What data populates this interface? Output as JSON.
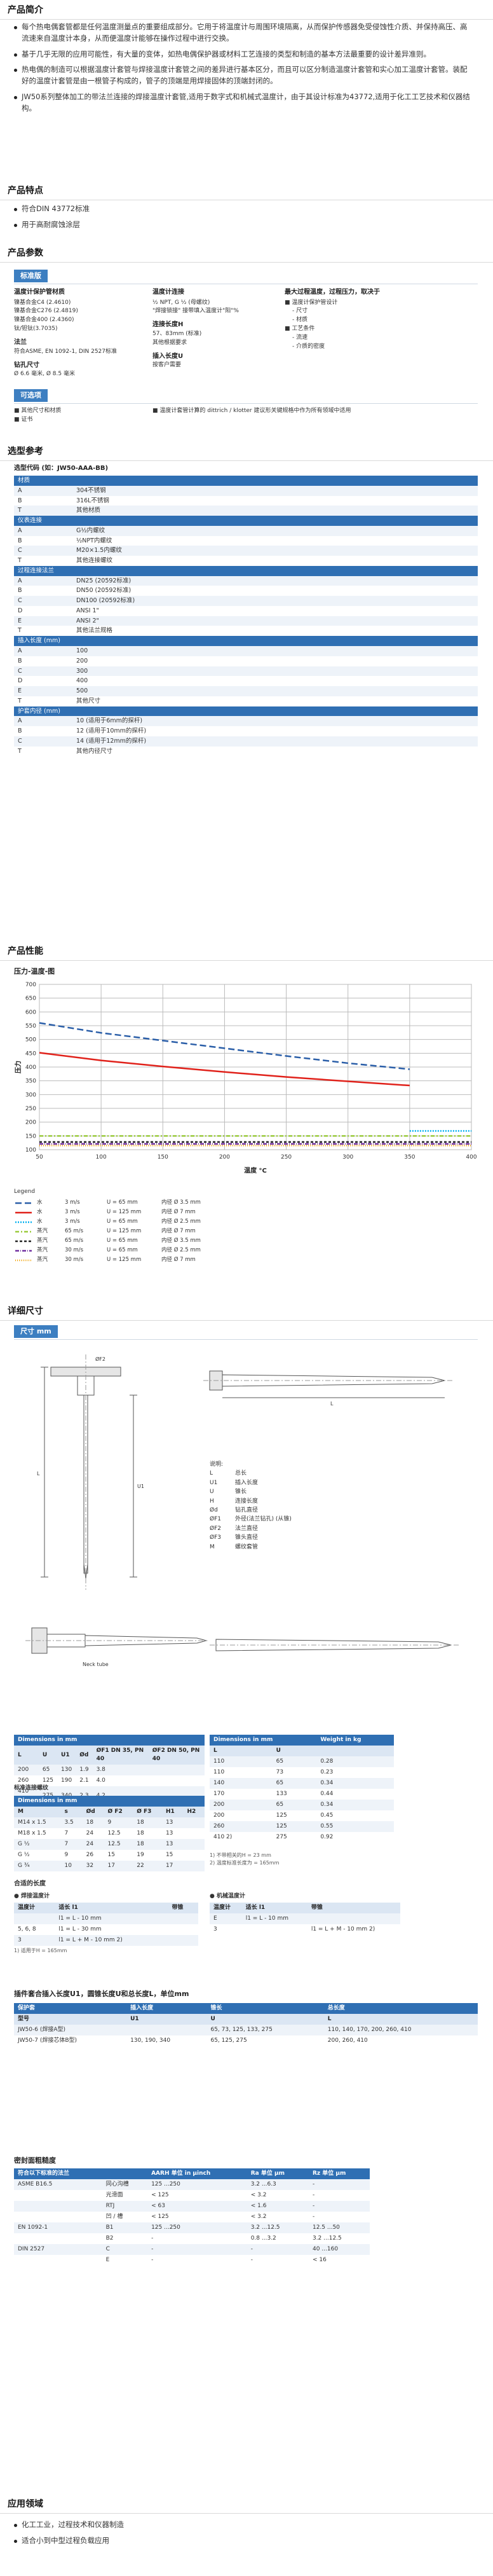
{
  "intro": {
    "title": "产品简介",
    "paras": [
      "每个热电偶套管都是任何温度测量点的重要组成部分。它用于将温度计与周围环境隔离，从而保护传感器免受侵蚀性介质、并保持高压、高流速来自温度计本身，从而便温度计能够在操作过程中进行交换。",
      "基于几乎无限的应用可能性，有大量的变体，如热电偶保护器或材料工艺连接的类型和制造的基本方法最重要的设计差异准则。",
      "热电偶的制造可以根据温度计套管与焊接温度计套管之间的差异进行基本区分，而且可以区分制造温度计套管和实心加工温度计套管。装配好的温度计套管是由一根管子构成的，管子的顶端是用焊接固体的顶端封闭的。",
      "JW50系列整体加工的带法兰连接的焊接温度计套管,适用于数字式和机械式温度计，由于其设计标准为43772,适用于化工工艺技术和仪器结构。"
    ]
  },
  "features": {
    "title": "产品特点",
    "items": [
      "符合DIN 43772标准",
      "用于高耐腐蚀涂层"
    ]
  },
  "params": {
    "title": "产品参数",
    "std_tag": "标准版",
    "col1": {
      "head": "温度计保护管材质",
      "lines": [
        "镍基合金C4 (2.4610)",
        "镍基合金C276 (2.4819)",
        "镍基合金400 (2.4360)",
        "钛/钽钛(3.7035)"
      ],
      "flange_label": "法兰",
      "flange_lines": [
        "符合ASME, EN 1092-1, DIN 2527标准"
      ],
      "bore_label": "钻孔尺寸",
      "bore_lines": [
        "Ø 6.6 毫米, Ø 8.5 毫米"
      ]
    },
    "col2": {
      "head": "温度计连接",
      "lines": [
        "½ NPT, G ½ (母螺纹)",
        "\"焊接锁接\" 接带填入温度计\"阳\"%"
      ],
      "len_label": "连接长度H",
      "len_lines": [
        "57、83mm (标准)",
        "其他根据要求"
      ],
      "ins_label": "插入长度U",
      "ins_lines": [
        "按客户需要"
      ]
    },
    "col3": {
      "head": "最大过程温度，过程压力，取决于",
      "items": [
        "温度计保护管设计",
        "尺寸",
        "材质",
        "工艺条件",
        "流速",
        "介质的密度"
      ]
    },
    "opt_tag": "可选项",
    "opt_left": [
      "其他尺寸和材质",
      "证书"
    ],
    "opt_right": "温度计套管计算的 dittrich / klotter 建议形关键规格中作为所有领域中适用"
  },
  "selection": {
    "title": "选型参考",
    "model_label": "选型代码 (如：JW50-AAA-BB)",
    "groups": [
      {
        "name": "材质",
        "rows": [
          [
            "A",
            "304不锈钢"
          ],
          [
            "B",
            "316L不锈钢"
          ],
          [
            "T",
            "其他材质"
          ]
        ]
      },
      {
        "name": "仪表连接",
        "rows": [
          [
            "A",
            "G½内螺纹"
          ],
          [
            "B",
            "½NPT内螺纹"
          ],
          [
            "C",
            "M20×1.5内螺纹"
          ],
          [
            "T",
            "其他连接螺纹"
          ]
        ]
      },
      {
        "name": "过程连接法兰",
        "rows": [
          [
            "A",
            "DN25 (20592标准)"
          ],
          [
            "B",
            "DN50 (20592标准)"
          ],
          [
            "C",
            "DN100 (20592标准)"
          ],
          [
            "D",
            "ANSI 1\""
          ],
          [
            "E",
            "ANSI 2\""
          ],
          [
            "T",
            "其他法兰规格"
          ]
        ]
      },
      {
        "name": "插入长度 (mm)",
        "rows": [
          [
            "A",
            "100"
          ],
          [
            "B",
            "200"
          ],
          [
            "C",
            "300"
          ],
          [
            "D",
            "400"
          ],
          [
            "E",
            "500"
          ],
          [
            "T",
            "其他尺寸"
          ]
        ]
      },
      {
        "name": "护套内径 (mm)",
        "rows": [
          [
            "A",
            "10 (适用于6mm的探杆)"
          ],
          [
            "B",
            "12 (适用于10mm的探杆)"
          ],
          [
            "C",
            "14 (适用于12mm的探杆)"
          ],
          [
            "T",
            "其他内径尺寸"
          ]
        ]
      }
    ]
  },
  "performance": {
    "title": "产品性能",
    "chart_title": "压力-温度-图"
  },
  "chart_data": {
    "type": "line",
    "title": "压力-温度-图",
    "xlabel": "温度 °C",
    "ylabel": "压力",
    "xlim": [
      50,
      400
    ],
    "ylim": [
      100,
      700
    ],
    "xticks": [
      50,
      100,
      150,
      200,
      250,
      300,
      350,
      400
    ],
    "yticks": [
      100,
      150,
      200,
      250,
      300,
      350,
      400,
      450,
      500,
      550,
      600,
      650,
      700
    ],
    "grid": true,
    "series": [
      {
        "color": "#2a5ea8",
        "dash": "10 5",
        "x": [
          50,
          100,
          150,
          200,
          250,
          300,
          350
        ],
        "y": [
          560,
          524,
          496,
          468,
          440,
          414,
          392
        ]
      },
      {
        "color": "#e0211a",
        "dash": "",
        "x": [
          50,
          100,
          150,
          200,
          250,
          300,
          350
        ],
        "y": [
          452,
          424,
          402,
          382,
          364,
          348,
          333
        ]
      },
      {
        "color": "#00b0f0",
        "dash": "2 2",
        "x": [
          350,
          400
        ],
        "y": [
          168,
          168
        ]
      },
      {
        "color": "#9bcb3c",
        "dash": "6 3 2 3",
        "x": [
          50,
          100,
          150,
          200,
          250,
          300,
          350,
          400
        ],
        "y": [
          150,
          150,
          150,
          150,
          150,
          150,
          150,
          150
        ]
      },
      {
        "color": "#222222",
        "dash": "4 3",
        "x": [
          50,
          100,
          150,
          200,
          250,
          300,
          350,
          400
        ],
        "y": [
          128,
          128,
          128,
          128,
          128,
          128,
          128,
          128
        ]
      },
      {
        "color": "#7030a0",
        "dash": "6 2 1 2",
        "x": [
          50,
          100,
          150,
          200,
          250,
          300,
          350,
          400
        ],
        "y": [
          121,
          121,
          121,
          121,
          121,
          121,
          121,
          121
        ]
      },
      {
        "color": "#f0a000",
        "dash": "1 2",
        "x": [
          50,
          100,
          150,
          200,
          250,
          300,
          350,
          400
        ],
        "y": [
          115,
          115,
          115,
          115,
          115,
          115,
          115,
          115
        ]
      }
    ]
  },
  "legend": {
    "title": "Legend",
    "rows": [
      {
        "color": "#2a5ea8",
        "dash": "10 5",
        "a": "水",
        "b": "3 m/s",
        "c": "U = 65 mm",
        "d": "内径 Ø 3.5 mm"
      },
      {
        "color": "#e0211a",
        "dash": "",
        "a": "水",
        "b": "3 m/s",
        "c": "U = 125 mm",
        "d": "内径 Ø 7 mm"
      },
      {
        "color": "#00b0f0",
        "dash": "2 2",
        "a": "水",
        "b": "3 m/s",
        "c": "U = 65 mm",
        "d": "内径 Ø 2.5 mm"
      },
      {
        "color": "#9bcb3c",
        "dash": "6 3 2 3",
        "a": "蒸汽",
        "b": "65 m/s",
        "c": "U = 125 mm",
        "d": "内径 Ø 7 mm"
      },
      {
        "color": "#222222",
        "dash": "4 3",
        "a": "蒸汽",
        "b": "65 m/s",
        "c": "U = 65 mm",
        "d": "内径 Ø 3.5 mm"
      },
      {
        "color": "#7030a0",
        "dash": "6 2 1 2",
        "a": "蒸汽",
        "b": "30 m/s",
        "c": "U = 65 mm",
        "d": "内径 Ø 2.5 mm"
      },
      {
        "color": "#f0a000",
        "dash": "1 2",
        "a": "蒸汽",
        "b": "30 m/s",
        "c": "U = 125 mm",
        "d": "内径 Ø 7 mm"
      }
    ]
  },
  "dims": {
    "title": "详细尺寸",
    "tag": "尺寸 mm",
    "neck_label": "Neck tube",
    "notes_title": "说明:",
    "notes": [
      [
        "L",
        "总长"
      ],
      [
        "U1",
        "插入长度"
      ],
      [
        "U",
        "锥长"
      ],
      [
        "H",
        "连接长度"
      ],
      [
        "Ød",
        "钻孔直径"
      ],
      [
        "ØF1",
        "外径(法兰钻孔) (从锥)"
      ],
      [
        "ØF2",
        "法兰直径"
      ],
      [
        "ØF3",
        "锥头直径"
      ],
      [
        "M",
        "螺纹套管"
      ]
    ],
    "t1_title": "Dimensions in mm",
    "t1_head": [
      "L",
      "U",
      "U1",
      "Ød",
      "ØF1 DN 35, PN 40",
      "ØF2 DN 50, PN 40"
    ],
    "t1_rows": [
      [
        "200",
        "65",
        "130",
        "1.9",
        "3.8",
        ""
      ],
      [
        "260",
        "125",
        "190",
        "2.1",
        "4.0",
        ""
      ],
      [
        "410 1)",
        "275",
        "340",
        "2.3",
        "4.2",
        ""
      ]
    ],
    "t1_sub": "标准连接螺纹",
    "t2_title": "Dimensions in mm",
    "t2_head": [
      "M",
      "s",
      "Ød",
      "Ø F2",
      "Ø F3",
      "H1",
      "H2"
    ],
    "t2_rows": [
      [
        "M14 x 1.5",
        "3.5",
        "18",
        "9",
        "18",
        "13",
        ""
      ],
      [
        "M18 x 1.5",
        "7",
        "24",
        "12.5",
        "18",
        "13",
        ""
      ],
      [
        "G ½",
        "7",
        "24",
        "12.5",
        "18",
        "13",
        ""
      ],
      [
        "G ½",
        "9",
        "26",
        "15",
        "19",
        "15",
        ""
      ],
      [
        "G ¾",
        "10",
        "32",
        "17",
        "22",
        "17",
        ""
      ]
    ],
    "t3_title": "Dimensions in mm",
    "t3_w": "Weight in kg",
    "t3_head": [
      "L",
      "U"
    ],
    "t3_rows": [
      [
        "110",
        "65",
        "0.28"
      ],
      [
        "110",
        "73",
        "0.23"
      ],
      [
        "140",
        "65",
        "0.34"
      ],
      [
        "170",
        "133",
        "0.44"
      ],
      [
        "200",
        "65",
        "0.34"
      ],
      [
        "200",
        "125",
        "0.45"
      ],
      [
        "260",
        "125",
        "0.55"
      ],
      [
        "410 2)",
        "275",
        "0.92"
      ]
    ],
    "t3_notes": [
      "1) 不带相关的H = 23 mm",
      "2) 温度标准长度为 = 165mm"
    ]
  },
  "combo": {
    "title": "合适的长度",
    "left_head": "● 焊接温度计",
    "right_head": "● 机械温度计",
    "cols_l": [
      "温度计",
      "适长 l1",
      "带锥"
    ],
    "rows_l": [
      [
        "",
        "l1 = L - 10 mm",
        ""
      ],
      [
        "5, 6, 8",
        "l1 = L - 30 mm",
        ""
      ],
      [
        "3",
        "l1 = L + M - 10 mm 2)",
        ""
      ]
    ],
    "cols_r": [
      "温度计",
      "适长 l1",
      "带锥"
    ],
    "rows_r": [
      [
        "E",
        "l1 = L - 10 mm",
        ""
      ],
      [
        "3",
        "",
        "l1 = L + M - 10 mm 2)"
      ]
    ],
    "note": "1) 适用于H = 165mm"
  },
  "insertion": {
    "title": "插件套合插入长度U1，圆锥长度U和总长度L，单位mm",
    "head": [
      "保护套",
      "插入长度",
      "锥长",
      "总长度"
    ],
    "sub": [
      "型号",
      "U1",
      "U",
      "L"
    ],
    "rows": [
      [
        "JW50-6 (焊接A型)",
        "",
        "65, 73, 125, 133, 275",
        "110, 140, 170, 200, 260, 410"
      ],
      [
        "JW50-7 (焊接芯体B型)",
        "130, 190, 340",
        "65, 125, 275",
        "200, 260, 410"
      ]
    ]
  },
  "roughness": {
    "title": "密封面粗糙度",
    "head": [
      "符合以下标准的法兰",
      "",
      "AARH 单位 in µinch",
      "Ra 单位 µm",
      "Rz 单位 µm"
    ],
    "rows": [
      [
        "ASME B16.5",
        "同心沟槽",
        "125 ...250",
        "3.2 ...6.3",
        "-"
      ],
      [
        "",
        "光滑面",
        "< 125",
        "< 3.2",
        "-"
      ],
      [
        "",
        "RTJ",
        "< 63",
        "< 1.6",
        "-"
      ],
      [
        "",
        "凹 / 槽",
        "< 125",
        "< 3.2",
        "-"
      ],
      [
        "EN 1092-1",
        "B1",
        "125 ...250",
        "3.2 ...12.5",
        "12.5 ...50"
      ],
      [
        "",
        "B2",
        "-",
        "0.8 ...3.2",
        "3.2 ...12.5"
      ],
      [
        "DIN 2527",
        "C",
        "-",
        "-",
        "40 ...160"
      ],
      [
        "",
        "E",
        "-",
        "-",
        "< 16"
      ]
    ]
  },
  "apps": {
    "title": "应用领域",
    "items": [
      "化工工业，过程技术和仪器制造",
      "适合小到中型过程负载应用"
    ]
  }
}
